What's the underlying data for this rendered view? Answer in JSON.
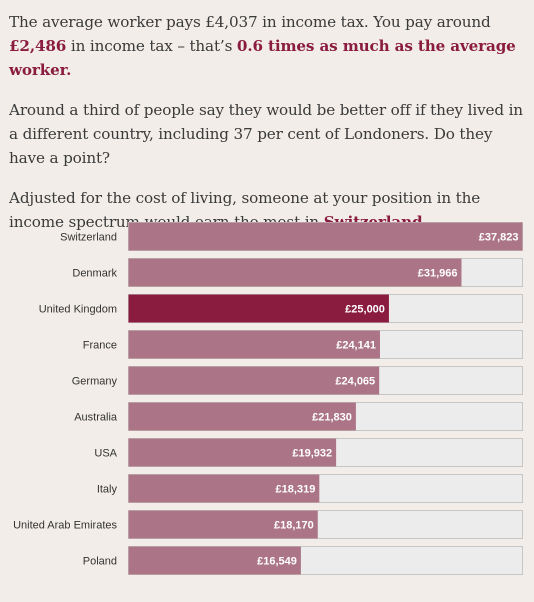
{
  "intro": {
    "p1_a": "The average worker pays £4,037 in income tax. You pay around ",
    "p1_amount": "£2,486",
    "p1_b": " in income tax – that’s ",
    "p1_ratio": "0.6 times as much as the average worker.",
    "p2": "Around a third of people say they would be better off if they lived in a different country, including 37 per cent of Londoners. Do they have a point?",
    "p3_a": "Adjusted for the cost of living, someone at your position in the income spectrum would earn the most in ",
    "p3_country": "Switzerland",
    "p3_b": "."
  },
  "colors": {
    "bar": "#ac7587",
    "highlight_bar": "#8a1c40",
    "track": "#ececec",
    "track_border": "#c6c6c6",
    "label": "#333333",
    "value_text": "#ffffff"
  },
  "chart_data": {
    "type": "bar",
    "orientation": "horizontal",
    "categories": [
      "Switzerland",
      "Denmark",
      "United Kingdom",
      "France",
      "Germany",
      "Australia",
      "USA",
      "Italy",
      "United Arab Emirates",
      "Poland"
    ],
    "values": [
      37823,
      31966,
      25000,
      24141,
      24065,
      21830,
      19932,
      18319,
      18170,
      16549
    ],
    "value_labels": [
      "£37,823",
      "£31,966",
      "£25,000",
      "£24,141",
      "£24,065",
      "£21,830",
      "£19,932",
      "£18,319",
      "£18,170",
      "£16,549"
    ],
    "highlight": "United Kingdom",
    "xlim": [
      0,
      37823
    ]
  }
}
